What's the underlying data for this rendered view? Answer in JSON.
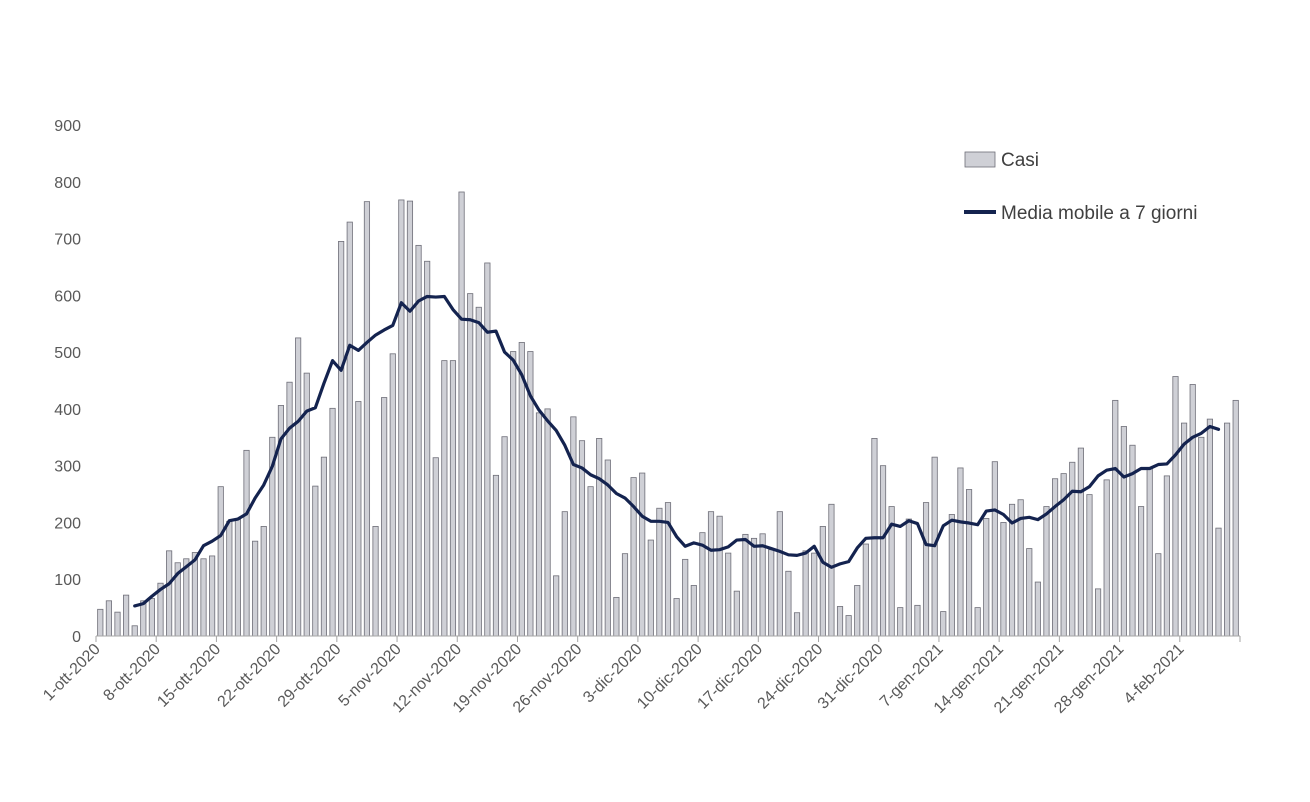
{
  "chart_data": {
    "type": "bar",
    "title": "",
    "xlabel": "",
    "ylabel": "",
    "ylim": [
      0,
      900
    ],
    "yticks": [
      0,
      100,
      200,
      300,
      400,
      500,
      600,
      700,
      800,
      900
    ],
    "grid": false,
    "legend_position": "top-right",
    "x_tick_labels": [
      "1-ott-2020",
      "8-ott-2020",
      "15-ott-2020",
      "22-ott-2020",
      "29-ott-2020",
      "5-nov-2020",
      "12-nov-2020",
      "19-nov-2020",
      "26-nov-2020",
      "3-dic-2020",
      "10-dic-2020",
      "17-dic-2020",
      "24-dic-2020",
      "31-dic-2020",
      "7-gen-2021",
      "14-gen-2021",
      "21-gen-2021",
      "28-gen-2021",
      "4-feb-2021"
    ],
    "x_start": "1-ott-2020",
    "x_end": "10-feb-2021",
    "series": [
      {
        "name": "Casi",
        "type": "bar",
        "color": "#cfd0d6",
        "values": [
          47,
          62,
          42,
          72,
          18,
          62,
          66,
          93,
          150,
          129,
          136,
          147,
          136,
          141,
          263,
          202,
          205,
          327,
          167,
          193,
          350,
          406,
          447,
          525,
          463,
          264,
          315,
          401,
          695,
          729,
          413,
          765,
          193,
          420,
          497,
          768,
          766,
          688,
          660,
          314,
          485,
          485,
          782,
          603,
          579,
          657,
          283,
          351,
          501,
          517,
          501,
          393,
          400,
          106,
          219,
          386,
          344,
          263,
          348,
          310,
          68,
          145,
          279,
          287,
          169,
          225,
          235,
          66,
          135,
          89,
          182,
          219,
          211,
          146,
          79,
          179,
          172,
          180,
          152,
          219,
          114,
          41,
          150,
          146,
          193,
          232,
          52,
          36,
          89,
          162,
          348,
          300,
          228,
          50,
          206,
          54,
          235,
          315,
          43,
          214,
          296,
          258,
          50,
          207,
          307,
          200,
          232,
          240,
          154,
          95,
          228,
          277,
          286,
          306,
          331,
          249,
          83,
          275,
          415,
          369,
          336,
          228,
          296,
          145,
          282,
          457,
          375,
          443,
          350,
          382,
          190,
          375,
          415
        ]
      },
      {
        "name": "Media mobile a 7 giorni",
        "type": "line",
        "color": "#14234f",
        "start_index": 4,
        "values": [
          53,
          57,
          70,
          82,
          92,
          110,
          122,
          134,
          159,
          167,
          177,
          203,
          206,
          215,
          243,
          266,
          299,
          347,
          366,
          378,
          396,
          402,
          445,
          485,
          468,
          512,
          503,
          517,
          530,
          539,
          547,
          587,
          572,
          590,
          598,
          597,
          598,
          575,
          558,
          557,
          552,
          535,
          537,
          500,
          486,
          460,
          423,
          398,
          379,
          362,
          336,
          302,
          296,
          284,
          277,
          266,
          251,
          243,
          228,
          211,
          202,
          202,
          200,
          175,
          158,
          164,
          160,
          151,
          152,
          157,
          169,
          170,
          158,
          159,
          154,
          149,
          143,
          142,
          146,
          158,
          130,
          121,
          127,
          131,
          155,
          172,
          173,
          173,
          197,
          193,
          203,
          198,
          161,
          159,
          194,
          204,
          201,
          199,
          196,
          220,
          222,
          214,
          199,
          207,
          209,
          205,
          215,
          228,
          240,
          255,
          254,
          263,
          282,
          292,
          295,
          280,
          286,
          295,
          295,
          302,
          303,
          319,
          338,
          350,
          357,
          369,
          364
        ]
      }
    ]
  }
}
